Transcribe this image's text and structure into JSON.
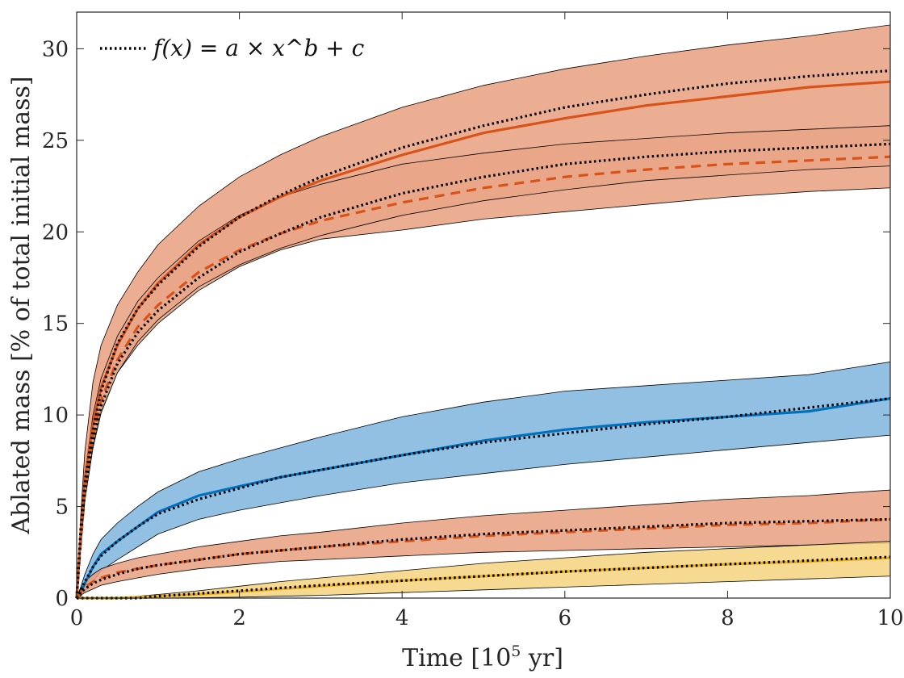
{
  "chart_data": {
    "type": "line",
    "xlabel": "Time [10^5 yr]",
    "xlabel_parts": {
      "base": "Time [10",
      "exp": "5",
      "unit": " yr]"
    },
    "ylabel": "Ablated mass [% of total initial mass]",
    "xlim": [
      0,
      10
    ],
    "ylim": [
      0,
      32
    ],
    "xticks": [
      0,
      2,
      4,
      6,
      8,
      10
    ],
    "yticks": [
      0,
      5,
      10,
      15,
      20,
      25,
      30
    ],
    "xtick_labels": [
      "0",
      "2",
      "4",
      "6",
      "8",
      "10"
    ],
    "ytick_labels": [
      "0",
      "5",
      "10",
      "15",
      "20",
      "25",
      "30"
    ],
    "grid": false,
    "legend": {
      "position": "top-left",
      "entries": [
        {
          "label": "f(x) = a × x^b + c",
          "style": "dotted",
          "color": "#000000"
        }
      ]
    },
    "colors": {
      "orange": "#D95319",
      "orange_fill": "#E8A080",
      "orange_fill_dark": "#E07A4F",
      "blue": "#0072BD",
      "blue_fill": "#7FB5DE",
      "yellow": "#EDB120",
      "yellow_fill": "#F6D37E"
    },
    "x": [
      0,
      0.05,
      0.1,
      0.2,
      0.3,
      0.5,
      0.75,
      1,
      1.5,
      2,
      2.5,
      3,
      4,
      5,
      6,
      7,
      8,
      9,
      10
    ],
    "series": [
      {
        "name": "orange-solid-upper",
        "color": "#D95319",
        "dash": "solid",
        "values": [
          0,
          3.5,
          6.5,
          9.5,
          11.5,
          13.8,
          15.8,
          17.2,
          19.3,
          20.8,
          21.9,
          22.8,
          24.2,
          25.4,
          26.2,
          26.9,
          27.4,
          27.9,
          28.2
        ],
        "band_upper": [
          0,
          4.5,
          8,
          11.8,
          13.8,
          16,
          17.8,
          19.3,
          21.4,
          23,
          24.2,
          25.2,
          26.8,
          28,
          28.9,
          29.6,
          30.2,
          30.7,
          31.3
        ],
        "band_lower": [
          0,
          3,
          5.8,
          8.3,
          10.2,
          12.3,
          13.8,
          15,
          16.8,
          18.1,
          19,
          19.6,
          20.1,
          20.7,
          21.1,
          21.5,
          21.9,
          22.2,
          22.4
        ],
        "fit": [
          0,
          3.8,
          6.3,
          9.2,
          11.3,
          13.9,
          15.8,
          17.1,
          19.2,
          20.8,
          22,
          23,
          24.6,
          25.8,
          26.8,
          27.5,
          28.1,
          28.5,
          28.8
        ]
      },
      {
        "name": "orange-dashed-upper",
        "color": "#D95319",
        "dash": "dashed",
        "values": [
          0,
          3,
          5.8,
          8.8,
          10.8,
          13,
          14.8,
          16,
          17.8,
          19,
          19.9,
          20.6,
          21.6,
          22.4,
          23,
          23.4,
          23.7,
          23.9,
          24.1
        ],
        "band_upper": [
          0,
          3.6,
          6.8,
          10,
          12,
          14.3,
          16.2,
          17.5,
          19.5,
          20.9,
          21.9,
          22.6,
          23.7,
          24.3,
          24.8,
          25.1,
          25.4,
          25.6,
          25.8
        ],
        "band_lower": [
          0,
          2.7,
          5.3,
          8.2,
          10.1,
          12.3,
          14,
          15.2,
          17,
          18.2,
          19.1,
          19.8,
          20.9,
          21.7,
          22.3,
          22.8,
          23.1,
          23.4,
          23.6
        ],
        "fit": [
          0,
          3.4,
          5.8,
          8.6,
          10.5,
          12.8,
          14.5,
          15.7,
          17.5,
          18.9,
          19.9,
          20.8,
          22.1,
          23,
          23.7,
          24.1,
          24.4,
          24.6,
          24.8
        ]
      },
      {
        "name": "blue-solid",
        "color": "#0072BD",
        "dash": "solid",
        "values": [
          0,
          0.3,
          0.8,
          1.7,
          2.4,
          3.1,
          3.9,
          4.7,
          5.6,
          6.1,
          6.6,
          7,
          7.8,
          8.6,
          9.2,
          9.6,
          9.9,
          10.2,
          10.9
        ],
        "band_upper": [
          0,
          0.6,
          1.3,
          2.4,
          3.2,
          4.1,
          5,
          5.8,
          6.9,
          7.6,
          8.2,
          8.8,
          9.9,
          10.7,
          11.3,
          11.6,
          11.9,
          12.2,
          12.9
        ],
        "band_lower": [
          0,
          0.1,
          0.4,
          0.9,
          1.5,
          2.1,
          2.8,
          3.5,
          4.3,
          4.8,
          5.2,
          5.6,
          6.3,
          6.8,
          7.3,
          7.7,
          8.1,
          8.5,
          8.9
        ],
        "fit": [
          0,
          0.4,
          0.9,
          1.7,
          2.3,
          3.1,
          3.9,
          4.6,
          5.4,
          6,
          6.6,
          7,
          7.8,
          8.5,
          9,
          9.5,
          9.9,
          10.4,
          10.9
        ]
      },
      {
        "name": "orange-dashed-lower",
        "color": "#D95319",
        "dash": "dashed",
        "values": [
          0,
          0.3,
          0.6,
          0.9,
          1.1,
          1.4,
          1.6,
          1.8,
          2.1,
          2.4,
          2.6,
          2.8,
          3.1,
          3.4,
          3.6,
          3.8,
          4,
          4.1,
          4.3
        ],
        "band_upper": [
          0,
          0.5,
          0.9,
          1.3,
          1.6,
          1.9,
          2.2,
          2.4,
          2.8,
          3.1,
          3.4,
          3.6,
          4.1,
          4.5,
          4.8,
          5.1,
          5.4,
          5.6,
          5.9
        ],
        "band_lower": [
          0,
          0.15,
          0.3,
          0.5,
          0.7,
          0.9,
          1.1,
          1.3,
          1.6,
          1.8,
          2,
          2.1,
          2.3,
          2.5,
          2.6,
          2.7,
          2.8,
          2.9,
          3
        ],
        "fit": [
          0,
          0.3,
          0.5,
          0.8,
          1,
          1.3,
          1.6,
          1.8,
          2.1,
          2.4,
          2.6,
          2.8,
          3.2,
          3.5,
          3.7,
          3.9,
          4.1,
          4.2,
          4.3
        ]
      },
      {
        "name": "yellow-solid",
        "color": "#EDB120",
        "dash": "solid",
        "values": [
          0,
          0,
          0,
          0,
          0,
          0,
          0.05,
          0.1,
          0.2,
          0.35,
          0.5,
          0.65,
          0.95,
          1.2,
          1.45,
          1.65,
          1.85,
          2,
          2.2
        ],
        "band_upper": [
          0,
          0,
          0,
          0,
          0,
          0,
          0.1,
          0.2,
          0.4,
          0.65,
          0.9,
          1.1,
          1.5,
          1.9,
          2.2,
          2.5,
          2.7,
          2.9,
          3.1
        ],
        "band_lower": [
          0,
          0,
          0,
          0,
          0,
          0,
          0,
          0,
          0.02,
          0.05,
          0.1,
          0.15,
          0.3,
          0.45,
          0.6,
          0.75,
          0.9,
          1.05,
          1.2
        ],
        "fit": [
          0,
          0,
          0,
          0,
          0,
          0,
          0,
          0.1,
          0.25,
          0.4,
          0.55,
          0.7,
          0.95,
          1.2,
          1.45,
          1.65,
          1.85,
          2.05,
          2.25
        ]
      }
    ]
  }
}
